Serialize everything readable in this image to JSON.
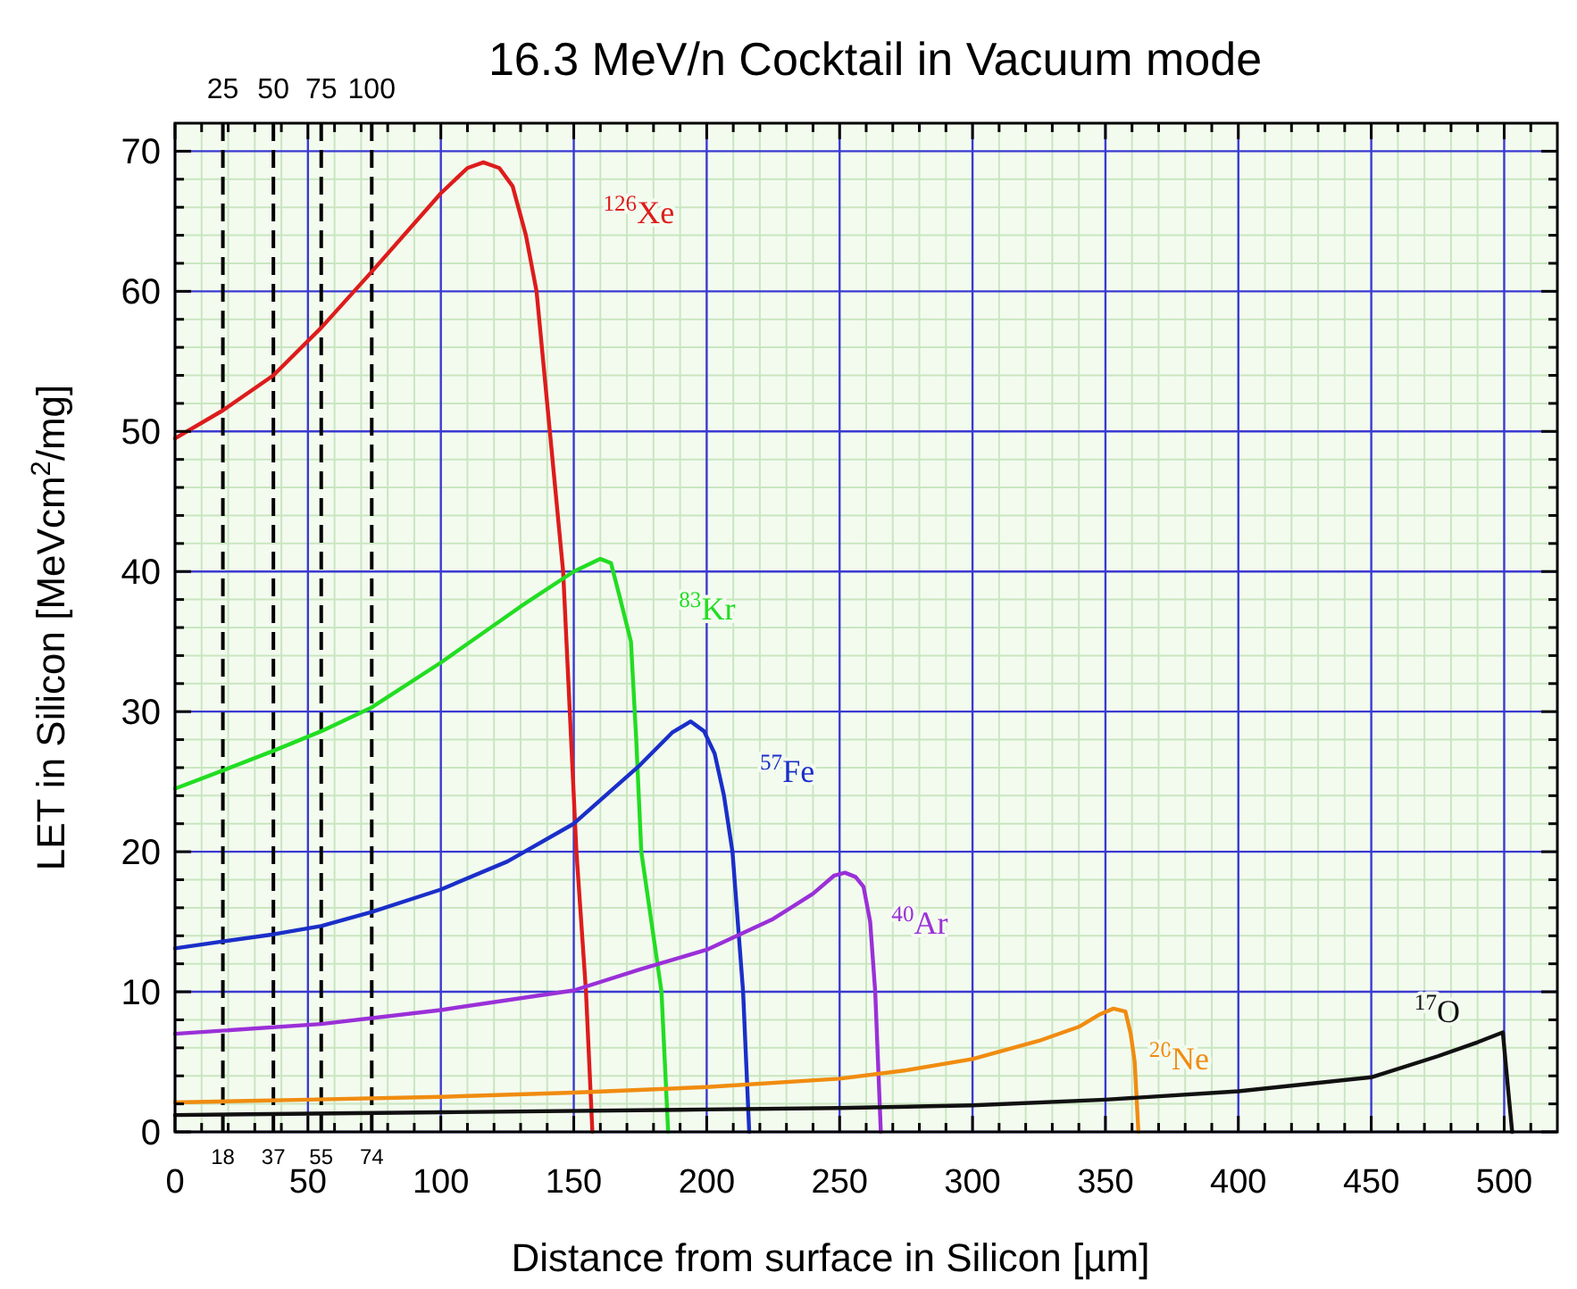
{
  "chart_data": {
    "type": "line",
    "title": "16.3 MeV/n Cocktail in Vacuum mode",
    "xlabel": "Distance from surface in Silicon [µm]",
    "ylabel": "LET in Silicon [MeVcm$^{2}$/mg]",
    "xlim": [
      0,
      520
    ],
    "ylim": [
      0,
      72
    ],
    "xticks": [
      0,
      {
        "value": 10,
        "label": null
      },
      {
        "value": 20,
        "label": null
      },
      {
        "value": 30,
        "label": null
      },
      {
        "value": 40,
        "label": null
      },
      50,
      {
        "value": 60,
        "label": null
      },
      {
        "value": 70,
        "label": null
      },
      {
        "value": 80,
        "label": null
      },
      {
        "value": 90,
        "label": null
      },
      100,
      {
        "value": 110,
        "label": null
      },
      {
        "value": 120,
        "label": null
      },
      {
        "value": 130,
        "label": null
      },
      {
        "value": 140,
        "label": null
      },
      150,
      {
        "value": 160,
        "label": null
      },
      {
        "value": 170,
        "label": null
      },
      {
        "value": 180,
        "label": null
      },
      {
        "value": 190,
        "label": null
      },
      200,
      {
        "value": 210,
        "label": null
      },
      {
        "value": 220,
        "label": null
      },
      {
        "value": 230,
        "label": null
      },
      {
        "value": 240,
        "label": null
      },
      250,
      {
        "value": 260,
        "label": null
      },
      {
        "value": 270,
        "label": null
      },
      {
        "value": 280,
        "label": null
      },
      {
        "value": 290,
        "label": null
      },
      300,
      {
        "value": 310,
        "label": null
      },
      {
        "value": 320,
        "label": null
      },
      {
        "value": 330,
        "label": null
      },
      {
        "value": 340,
        "label": null
      },
      350,
      {
        "value": 360,
        "label": null
      },
      {
        "value": 370,
        "label": null
      },
      {
        "value": 380,
        "label": null
      },
      {
        "value": 390,
        "label": null
      },
      400,
      {
        "value": 410,
        "label": null
      },
      {
        "value": 420,
        "label": null
      },
      {
        "value": 430,
        "label": null
      },
      {
        "value": 440,
        "label": null
      },
      450,
      {
        "value": 460,
        "label": null
      },
      {
        "value": 470,
        "label": null
      },
      {
        "value": 480,
        "label": null
      },
      {
        "value": 490,
        "label": null
      },
      500,
      {
        "value": 510,
        "label": null
      }
    ],
    "yticks": [
      0,
      {
        "value": 2,
        "label": null
      },
      {
        "value": 4,
        "label": null
      },
      {
        "value": 6,
        "label": null
      },
      {
        "value": 8,
        "label": null
      },
      10,
      {
        "value": 12,
        "label": null
      },
      {
        "value": 14,
        "label": null
      },
      {
        "value": 16,
        "label": null
      },
      {
        "value": 18,
        "label": null
      },
      20,
      {
        "value": 22,
        "label": null
      },
      {
        "value": 24,
        "label": null
      },
      {
        "value": 26,
        "label": null
      },
      {
        "value": 28,
        "label": null
      },
      30,
      {
        "value": 32,
        "label": null
      },
      {
        "value": 34,
        "label": null
      },
      {
        "value": 36,
        "label": null
      },
      {
        "value": 38,
        "label": null
      },
      40,
      {
        "value": 42,
        "label": null
      },
      {
        "value": 44,
        "label": null
      },
      {
        "value": 46,
        "label": null
      },
      {
        "value": 48,
        "label": null
      },
      50,
      {
        "value": 52,
        "label": null
      },
      {
        "value": 54,
        "label": null
      },
      {
        "value": 56,
        "label": null
      },
      {
        "value": 58,
        "label": null
      },
      60,
      {
        "value": 62,
        "label": null
      },
      {
        "value": 64,
        "label": null
      },
      {
        "value": 66,
        "label": null
      },
      {
        "value": 68,
        "label": null
      },
      70
    ],
    "ref_lines": [
      {
        "axis": "x",
        "value": 18,
        "label": "18",
        "color": "#000000",
        "line_style": "dashed"
      },
      {
        "axis": "x",
        "value": 37,
        "label": "37",
        "color": "#000000",
        "line_style": "dashed"
      },
      {
        "axis": "x",
        "value": 55,
        "label": "55",
        "color": "#000000",
        "line_style": "dashed"
      },
      {
        "axis": "x",
        "value": 74,
        "label": "74",
        "color": "#000000",
        "line_style": "dashed"
      }
    ],
    "annotations": [
      "25",
      "50",
      "75",
      "100"
    ],
    "grid": true,
    "legend": false,
    "marker": "none",
    "line_style": "solid",
    "series": [
      {
        "name": "$^{126}$Xe",
        "color": "#dd1c1c",
        "x": [
          0,
          18,
          37,
          55,
          74,
          100,
          110,
          116,
          122,
          127,
          132,
          136,
          141,
          146,
          151,
          154.6,
          157
        ],
        "values": [
          49.5,
          51.5,
          54,
          57.4,
          61.4,
          67,
          68.8,
          69.2,
          68.8,
          67.5,
          64,
          60,
          50,
          40,
          20,
          10,
          0
        ]
      },
      {
        "name": "$^{83}$Kr",
        "color": "#22dd22",
        "x": [
          0,
          18,
          37,
          55,
          74,
          100,
          130,
          150,
          160,
          164,
          167,
          171.5,
          173.5,
          175.4,
          183,
          185.5
        ],
        "values": [
          24.5,
          25.8,
          27.2,
          28.6,
          30.3,
          33.5,
          37.5,
          40,
          40.9,
          40.6,
          38.4,
          35,
          28,
          20,
          10,
          0
        ]
      },
      {
        "name": "$^{57}$Fe",
        "color": "#1a2fc8",
        "x": [
          0,
          18,
          37,
          55,
          74,
          100,
          125,
          150,
          175,
          187,
          194,
          199,
          203,
          206.5,
          209.7,
          213.7,
          216
        ],
        "values": [
          13.1,
          13.6,
          14.1,
          14.7,
          15.7,
          17.3,
          19.3,
          22,
          26.2,
          28.5,
          29.3,
          28.6,
          27,
          24,
          20,
          10,
          0
        ]
      },
      {
        "name": "$^{40}$Ar",
        "color": "#9a30d8",
        "x": [
          0,
          55,
          100,
          150,
          175,
          200,
          225,
          240,
          248,
          252,
          256,
          259,
          261.5,
          263.4,
          265.5
        ],
        "values": [
          7,
          7.7,
          8.7,
          10.1,
          11.6,
          13,
          15.2,
          17,
          18.3,
          18.5,
          18.2,
          17.5,
          15,
          10,
          0
        ]
      },
      {
        "name": "$^{20}$Ne",
        "color": "#f08c10",
        "x": [
          0,
          50,
          100,
          150,
          200,
          250,
          275,
          300,
          325,
          340,
          348,
          353,
          357.5,
          359.5,
          361,
          362.4
        ],
        "values": [
          2.1,
          2.3,
          2.5,
          2.8,
          3.2,
          3.8,
          4.4,
          5.2,
          6.5,
          7.5,
          8.4,
          8.8,
          8.6,
          7,
          5,
          0
        ]
      },
      {
        "name": "$^{17}$O",
        "color": "#111111",
        "x": [
          0,
          100,
          200,
          250,
          300,
          350,
          400,
          450,
          475,
          490,
          499.5,
          501,
          503
        ],
        "values": [
          1.2,
          1.4,
          1.6,
          1.7,
          1.9,
          2.3,
          2.9,
          3.9,
          5.4,
          6.4,
          7.1,
          4,
          0
        ]
      }
    ]
  }
}
